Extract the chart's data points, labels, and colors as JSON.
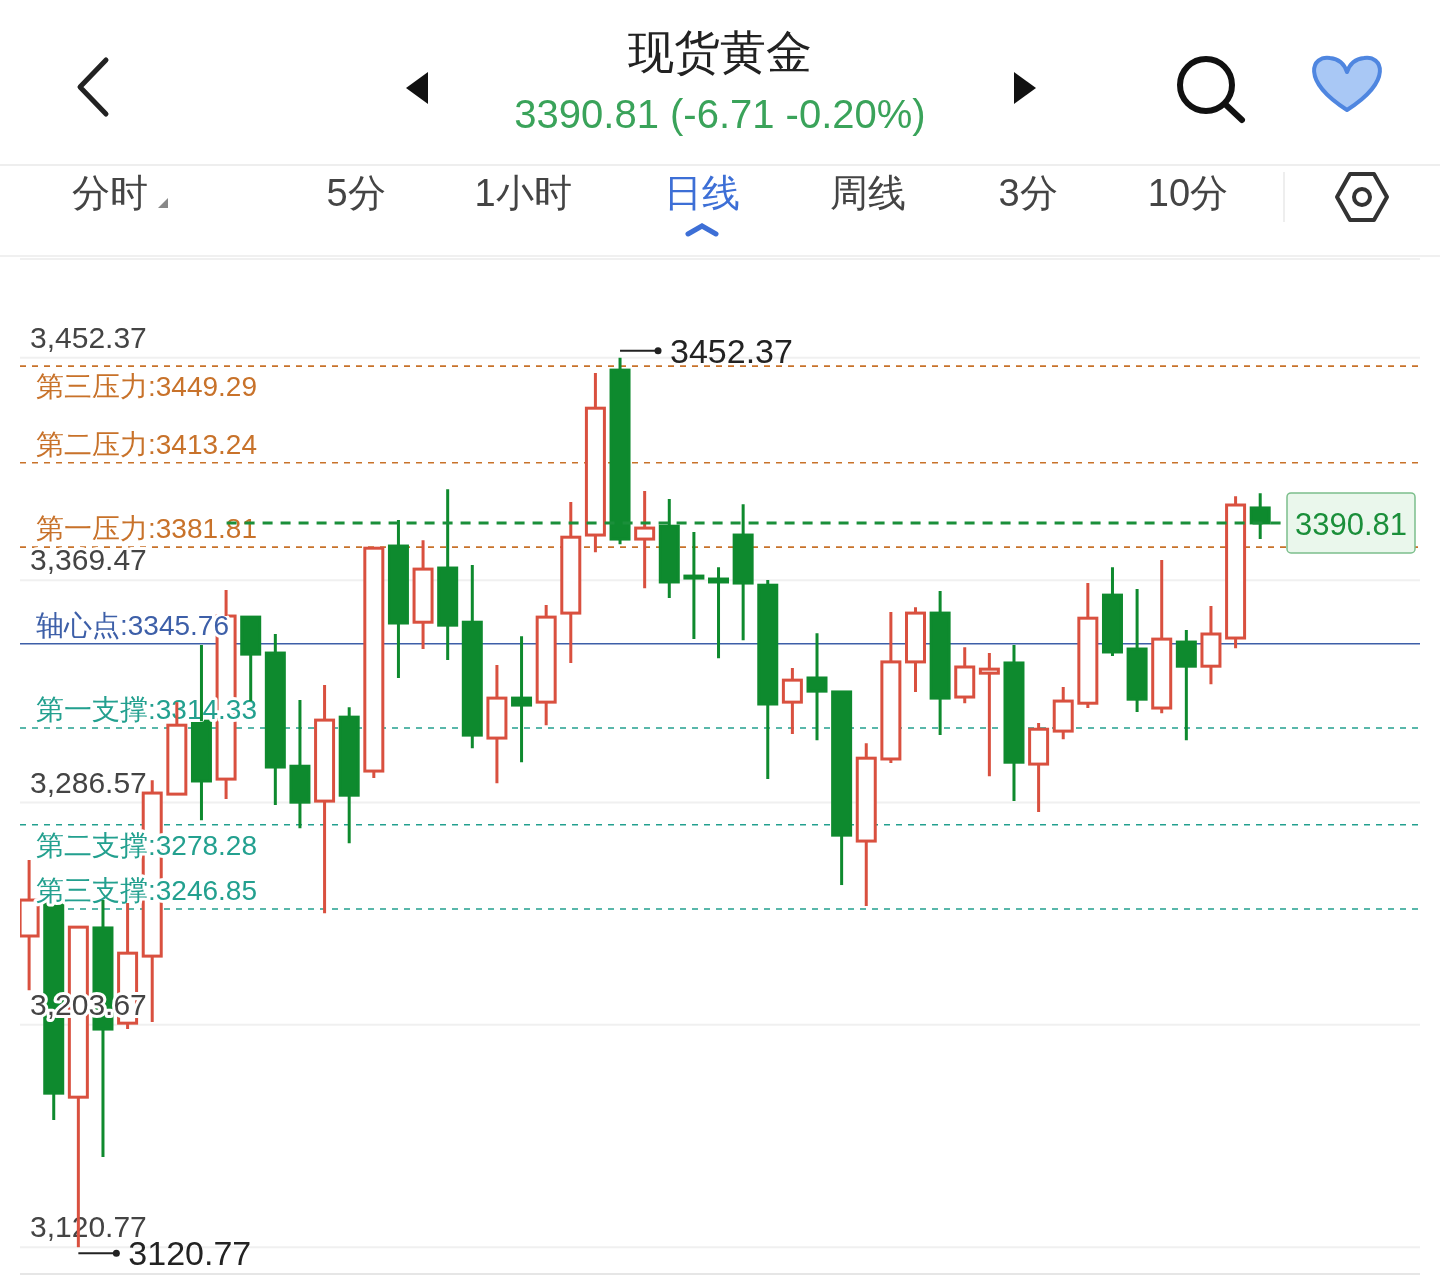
{
  "chart_data": {
    "type": "candlestick",
    "title": "现货黄金",
    "subtitle": "3390.81 (-6.71 -0.20%)",
    "categories": [
      null,
      null,
      null,
      null,
      null,
      null,
      null,
      null,
      null,
      null,
      null,
      null,
      null,
      null,
      null,
      null,
      null,
      null,
      null,
      null,
      null,
      null,
      null,
      null,
      null,
      null,
      null,
      null,
      null,
      null,
      null,
      null,
      null,
      null,
      null,
      null,
      null,
      null,
      null,
      null,
      null,
      null,
      null,
      null,
      null,
      null,
      null,
      null,
      null,
      null,
      null
    ],
    "ohlc": [
      [
        3236.8,
        3265.1,
        3216.6,
        3250.2
      ],
      [
        3250.2,
        3250.2,
        3168.2,
        3178.2
      ],
      [
        3176.7,
        3240.1,
        3120.77,
        3240.1
      ],
      [
        3239.8,
        3250.2,
        3154.4,
        3202.1
      ],
      [
        3204.3,
        3249.1,
        3202.1,
        3230.4
      ],
      [
        3229.3,
        3294.9,
        3204.7,
        3290.1
      ],
      [
        3289.7,
        3324.0,
        3289.7,
        3315.4
      ],
      [
        3316.9,
        3345.3,
        3280.0,
        3294.6
      ],
      [
        3295.3,
        3365.8,
        3287.9,
        3356.1
      ],
      [
        3355.7,
        3355.7,
        3324.4,
        3341.9
      ],
      [
        3342.3,
        3349.4,
        3285.6,
        3299.8
      ],
      [
        3300.1,
        3324.8,
        3277.0,
        3286.7
      ],
      [
        3287.1,
        3330.4,
        3245.3,
        3317.3
      ],
      [
        3318.4,
        3322.1,
        3271.4,
        3289.3
      ],
      [
        3298.3,
        3381.8,
        3295.7,
        3381.4
      ],
      [
        3382.2,
        3391.9,
        3333.0,
        3353.5
      ],
      [
        3353.8,
        3384.4,
        3343.8,
        3373.6
      ],
      [
        3374.0,
        3403.4,
        3339.7,
        3352.7
      ],
      [
        3353.8,
        3375.1,
        3306.8,
        3311.7
      ],
      [
        3310.6,
        3337.8,
        3293.8,
        3325.5
      ],
      [
        3325.5,
        3348.6,
        3301.6,
        3322.9
      ],
      [
        3324.0,
        3360.2,
        3315.4,
        3355.7
      ],
      [
        3357.2,
        3398.6,
        3338.6,
        3385.5
      ],
      [
        3386.3,
        3446.7,
        3379.9,
        3433.6
      ],
      [
        3447.8,
        3452.37,
        3382.9,
        3384.8
      ],
      [
        3384.8,
        3402.7,
        3366.5,
        3388.9
      ],
      [
        3389.6,
        3399.7,
        3362.8,
        3368.8
      ],
      [
        3371.0,
        3387.4,
        3347.5,
        3370.3
      ],
      [
        3369.9,
        3374.3,
        3340.4,
        3368.8
      ],
      [
        3386.3,
        3397.8,
        3347.1,
        3368.4
      ],
      [
        3367.6,
        3369.5,
        3295.3,
        3323.3
      ],
      [
        3324.0,
        3336.7,
        3312.1,
        3332.2
      ],
      [
        3333.0,
        3349.7,
        3309.8,
        3328.1
      ],
      [
        3327.8,
        3327.8,
        3255.8,
        3274.4
      ],
      [
        3272.2,
        3308.7,
        3248.0,
        3303.1
      ],
      [
        3302.8,
        3357.6,
        3301.3,
        3339.0
      ],
      [
        3339.0,
        3359.4,
        3327.8,
        3357.2
      ],
      [
        3357.2,
        3365.4,
        3311.7,
        3325.5
      ],
      [
        3325.9,
        3344.5,
        3323.6,
        3337.1
      ],
      [
        3334.8,
        3342.3,
        3296.4,
        3336.3
      ],
      [
        3338.6,
        3345.3,
        3287.1,
        3301.6
      ],
      [
        3300.9,
        3316.2,
        3283.0,
        3313.9
      ],
      [
        3313.2,
        3329.6,
        3310.2,
        3324.4
      ],
      [
        3323.6,
        3368.4,
        3321.8,
        3355.3
      ],
      [
        3363.9,
        3374.3,
        3341.2,
        3342.7
      ],
      [
        3343.8,
        3366.2,
        3320.3,
        3325.1
      ],
      [
        3321.8,
        3377.0,
        3319.9,
        3347.5
      ],
      [
        3346.4,
        3350.9,
        3309.8,
        3337.4
      ],
      [
        3337.4,
        3359.8,
        3330.7,
        3349.4
      ],
      [
        3347.9,
        3400.8,
        3344.1,
        3397.5
      ],
      [
        3396.4,
        3401.9,
        3384.8,
        3390.81
      ]
    ],
    "colors": [
      "#d9503f",
      "#0e8a2e",
      "#d9503f",
      "#0e8a2e",
      "#d9503f",
      "#d9503f",
      "#d9503f",
      "#0e8a2e",
      "#d9503f",
      "#0e8a2e",
      "#0e8a2e",
      "#0e8a2e",
      "#d9503f",
      "#0e8a2e",
      "#d9503f",
      "#0e8a2e",
      "#d9503f",
      "#0e8a2e",
      "#0e8a2e",
      "#d9503f",
      "#0e8a2e",
      "#d9503f",
      "#d9503f",
      "#d9503f",
      "#0e8a2e",
      "#d9503f",
      "#0e8a2e",
      "#0e8a2e",
      "#0e8a2e",
      "#0e8a2e",
      "#0e8a2e",
      "#d9503f",
      "#0e8a2e",
      "#0e8a2e",
      "#d9503f",
      "#d9503f",
      "#d9503f",
      "#0e8a2e",
      "#d9503f",
      "#d9503f",
      "#0e8a2e",
      "#d9503f",
      "#d9503f",
      "#d9503f",
      "#0e8a2e",
      "#0e8a2e",
      "#d9503f",
      "#0e8a2e",
      "#d9503f",
      "#d9503f",
      "#0e8a2e"
    ],
    "ylim": [
      3110.4,
      3489.6
    ],
    "yticks": [
      {
        "value": 3452.37,
        "label": "3,452.37"
      },
      {
        "value": 3369.47,
        "label": "3,369.47"
      },
      {
        "value": 3286.57,
        "label": "3,286.57"
      },
      {
        "value": 3203.67,
        "label": "3,203.67"
      },
      {
        "value": 3120.77,
        "label": "3,120.77"
      }
    ],
    "grid": "y",
    "legend": false,
    "marker": "none",
    "ref_lines": [
      {
        "axis": "y",
        "value": 3449.29,
        "label": "第三压力:3449.29",
        "color": "#c8722a",
        "line_style": "dashed"
      },
      {
        "axis": "y",
        "value": 3413.24,
        "label": "第二压力:3413.24",
        "color": "#c8722a",
        "line_style": "dashed"
      },
      {
        "axis": "y",
        "value": 3381.81,
        "label": "第一压力:3381.81",
        "color": "#c8722a",
        "line_style": "dashed"
      },
      {
        "axis": "y",
        "value": 3345.76,
        "label": "轴心点:3345.76",
        "color": "#3d5fa8",
        "line_style": "solid"
      },
      {
        "axis": "y",
        "value": 3314.33,
        "label": "第一支撑:3314.33",
        "color": "#23a08f",
        "line_style": "dashed"
      },
      {
        "axis": "y",
        "value": 3278.28,
        "label": "第二支撑:3278.28",
        "color": "#23a08f",
        "line_style": "dashed"
      },
      {
        "axis": "y",
        "value": 3246.85,
        "label": "第三支撑:3246.85",
        "color": "#23a08f",
        "line_style": "dashed"
      },
      {
        "axis": "y",
        "value": 3390.81,
        "label": "3390.81",
        "color": "#1a8f3a",
        "line_style": "bold"
      }
    ],
    "annotations": [
      "分时",
      "5分",
      "1小时",
      "日线",
      "周线",
      "3分",
      "10分",
      "3452.37",
      "3120.77"
    ]
  }
}
